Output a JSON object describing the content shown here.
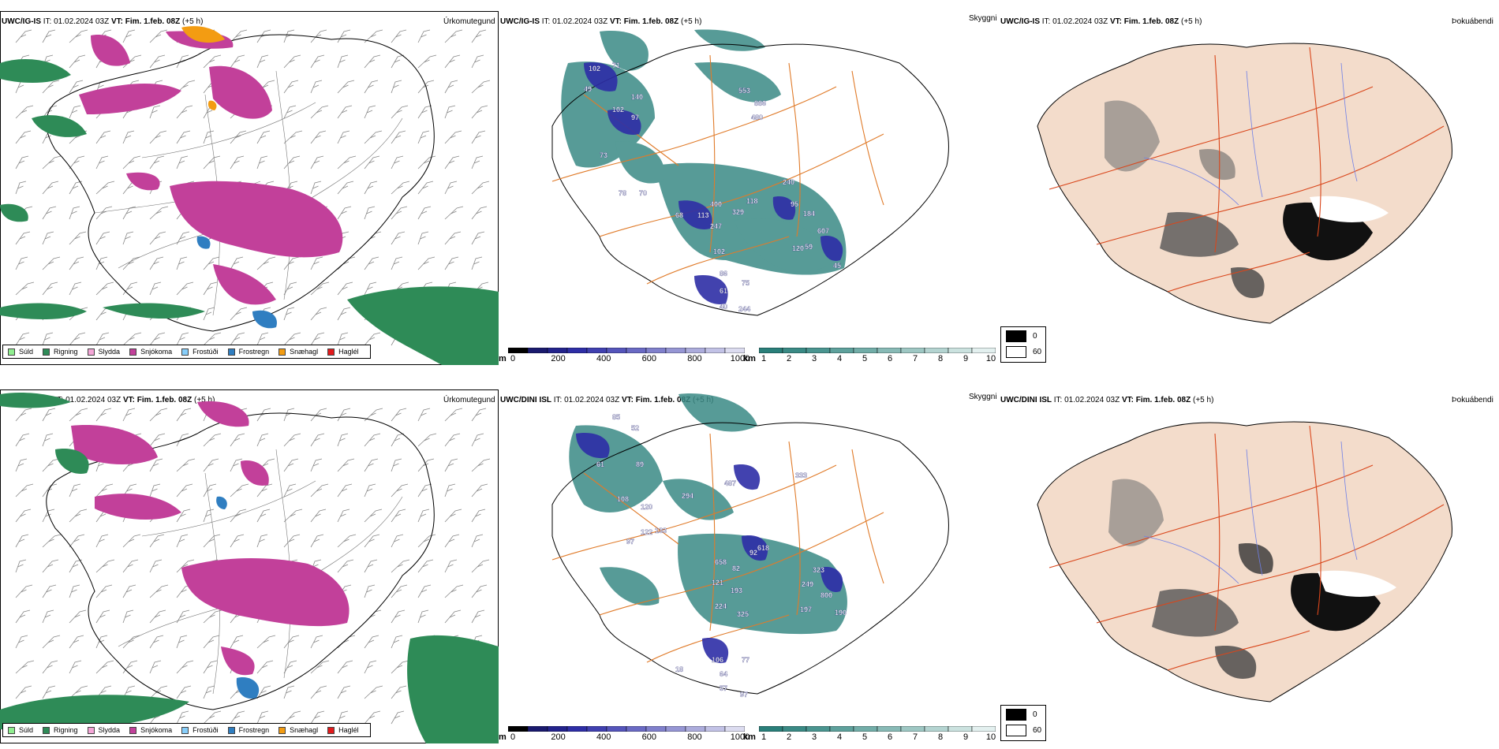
{
  "rows": [
    {
      "model": "UWC/IG-IS",
      "it_label": "IT:",
      "it_value": "01.02.2024 03Z",
      "vt_label": "VT:",
      "vt_value": "Fim. 1.feb. 08Z",
      "lead": "(+5 h)"
    },
    {
      "model": "UWC/DINI ISL",
      "it_label": "IT:",
      "it_value": "01.02.2024 03Z",
      "vt_label": "VT:",
      "vt_value": "Fim. 1.feb. 08Z",
      "lead": "(+5 h)"
    }
  ],
  "map_types": {
    "precip": "Úrkomutegund",
    "visibility": "Skyggni",
    "fog": "Þokuábendi"
  },
  "precip_legend": [
    {
      "label": "Súld",
      "color": "#90ee90"
    },
    {
      "label": "Rigning",
      "color": "#2e8b57"
    },
    {
      "label": "Slydda",
      "color": "#f4a6d7"
    },
    {
      "label": "Snjókoma",
      "color": "#c2409a"
    },
    {
      "label": "Frostúði",
      "color": "#87cefa"
    },
    {
      "label": "Frostregn",
      "color": "#2f7ec1"
    },
    {
      "label": "Snæhagl",
      "color": "#f39c12"
    },
    {
      "label": "Haglél",
      "color": "#e31a1c"
    }
  ],
  "visibility_scale_m": {
    "unit": "m",
    "ticks": [
      "0",
      "200",
      "400",
      "600",
      "800",
      "1000"
    ],
    "colors": [
      "#000000",
      "#1a1a6e",
      "#23238c",
      "#2e2ea6",
      "#4040b0",
      "#5555bb",
      "#6a6ac4",
      "#8080cc",
      "#9696d4",
      "#acacdc",
      "#c2c2e6",
      "#dcdcf0"
    ]
  },
  "visibility_scale_km": {
    "unit": "km",
    "ticks": [
      "1",
      "2",
      "3",
      "4",
      "5",
      "6",
      "7",
      "8",
      "9",
      "10"
    ],
    "colors": [
      "#2a7f7a",
      "#3a8a85",
      "#4a9590",
      "#5ea19c",
      "#72ada8",
      "#88bab6",
      "#9ec7c3",
      "#b4d4d1",
      "#cbe2df",
      "#e3f0ef"
    ]
  },
  "fog_legend": [
    {
      "label": "0",
      "color": "#000000"
    },
    {
      "label": "60",
      "color": "#ffffff"
    }
  ],
  "visibility_labels": [
    [
      "102",
      "71",
      "49",
      "140",
      "102",
      "97",
      "73",
      "78",
      "70",
      "553",
      "886",
      "480",
      "240",
      "118",
      "95",
      "184",
      "68",
      "113",
      "400",
      "329",
      "247",
      "102",
      "607",
      "120",
      "59",
      "45",
      "86",
      "61",
      "75",
      "40",
      "244"
    ],
    [
      "85",
      "52",
      "61",
      "89",
      "108",
      "120",
      "294",
      "487",
      "333",
      "133",
      "97",
      "122",
      "618",
      "92",
      "658",
      "82",
      "121",
      "193",
      "224",
      "325",
      "323",
      "249",
      "800",
      "197",
      "190",
      "106",
      "77",
      "64",
      "57",
      "97",
      "18"
    ]
  ]
}
